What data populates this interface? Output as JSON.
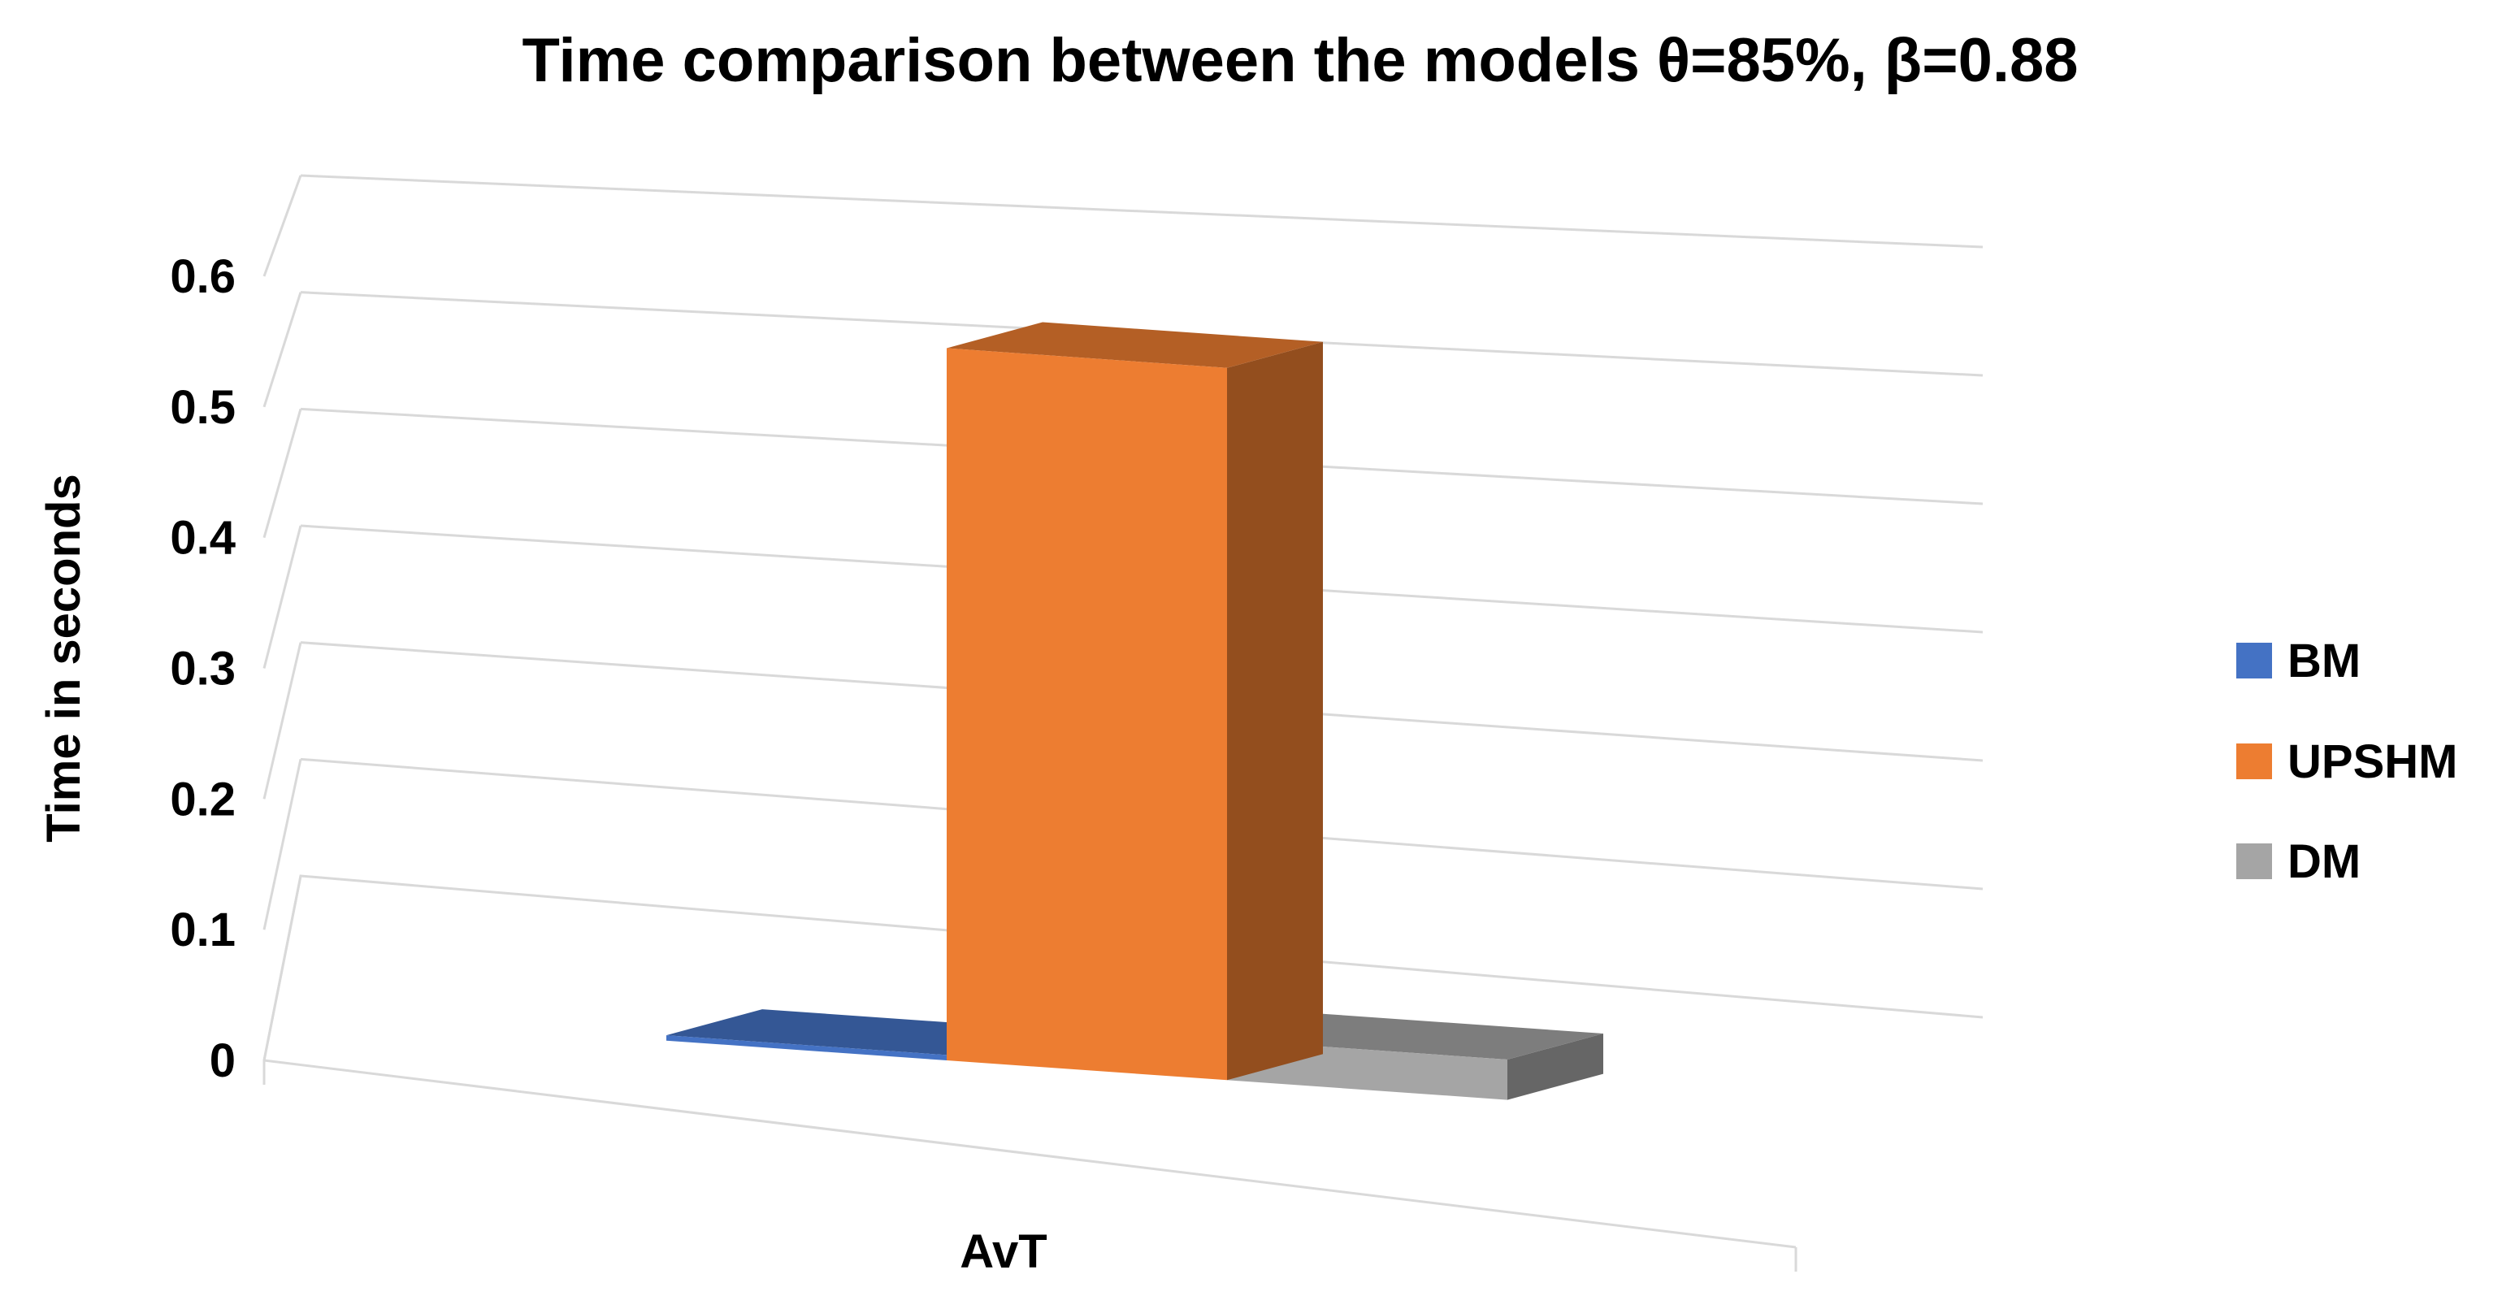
{
  "chart_data": {
    "type": "bar",
    "title": "Time comparison between the models θ=85%, β=0.88",
    "xlabel": "",
    "ylabel": "Time in seconds",
    "categories": [
      "AvT"
    ],
    "series": [
      {
        "name": "BM",
        "values": [
          0.004
        ],
        "color": "#4472C4"
      },
      {
        "name": "UPSHM",
        "values": [
          0.53
        ],
        "color": "#ED7D31"
      },
      {
        "name": "DM",
        "values": [
          0.03
        ],
        "color": "#A5A5A5"
      }
    ],
    "ylim": [
      0,
      0.6
    ],
    "yticks": [
      "0",
      "0.1",
      "0.2",
      "0.3",
      "0.4",
      "0.5",
      "0.6"
    ],
    "grid": true,
    "legend_position": "right",
    "style": "3d-column"
  }
}
